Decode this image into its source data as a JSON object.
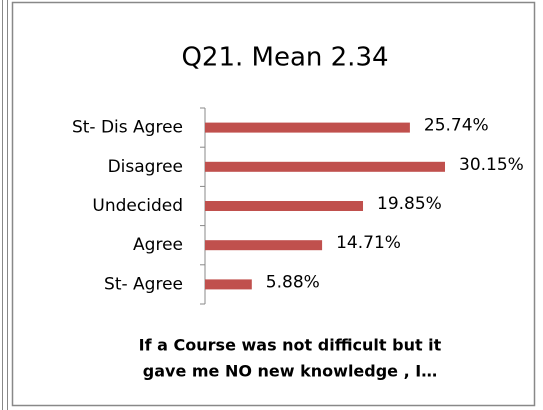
{
  "chart_data": {
    "type": "hbar",
    "title": "Q21. Mean 2.34",
    "categories": [
      "St- Dis Agree",
      "Disagree",
      "Undecided",
      "Agree",
      "St- Agree"
    ],
    "values": [
      25.74,
      30.15,
      19.85,
      14.71,
      5.88
    ],
    "value_labels": [
      "25.74%",
      "30.15%",
      "19.85%",
      "14.71%",
      "5.88%"
    ],
    "color": "#c0504d",
    "x_label": [
      "If a Course was not difficult but  it",
      "gave me  NO  new knowledge , I…"
    ]
  }
}
